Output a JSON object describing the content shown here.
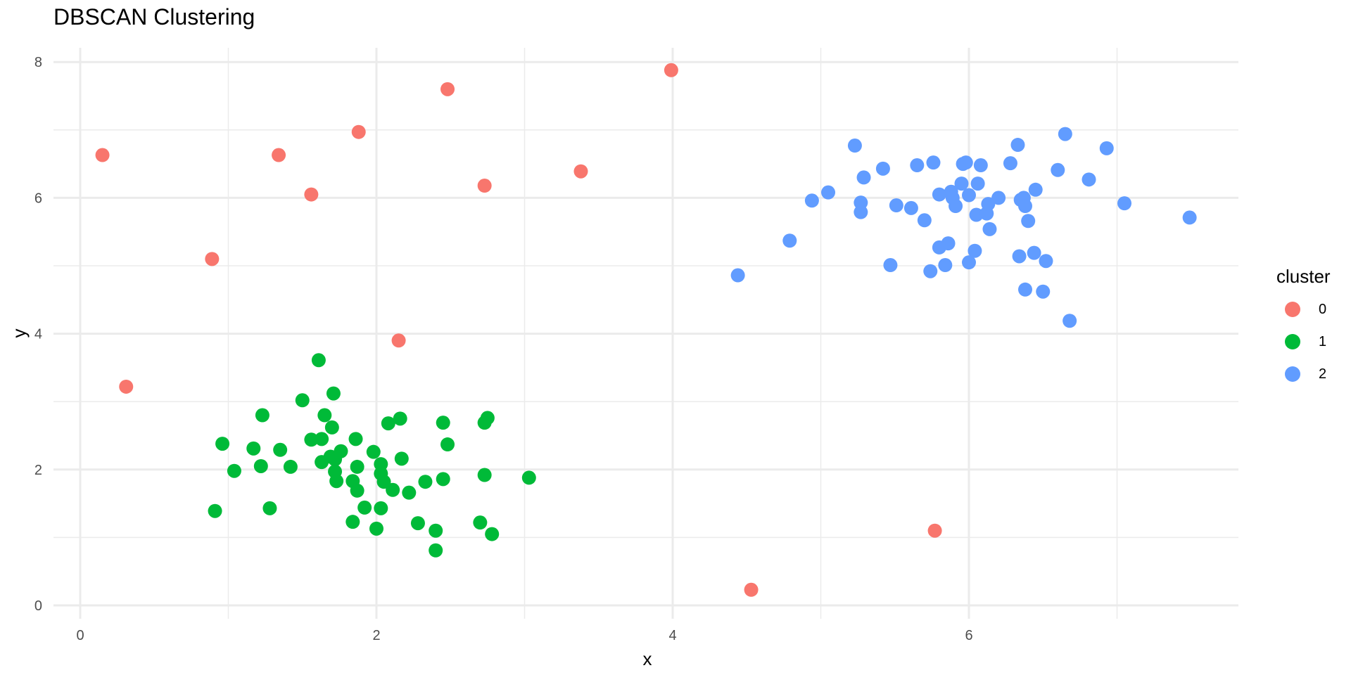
{
  "chart_data": {
    "type": "scatter",
    "title": "DBSCAN Clustering",
    "xlabel": "x",
    "ylabel": "y",
    "xlim": [
      -0.18,
      7.7
    ],
    "ylim": [
      -0.2,
      8.2
    ],
    "x_ticks": [
      0,
      2,
      4,
      6
    ],
    "y_ticks": [
      0,
      2,
      4,
      6,
      8
    ],
    "grid": true,
    "legend": {
      "title": "cluster",
      "position": "right",
      "entries": [
        "0",
        "1",
        "2"
      ]
    },
    "series": [
      {
        "name": "0",
        "color": "#F8766D",
        "points": [
          [
            0.15,
            6.63
          ],
          [
            0.31,
            3.22
          ],
          [
            0.89,
            5.1
          ],
          [
            1.34,
            6.63
          ],
          [
            1.56,
            6.05
          ],
          [
            1.88,
            6.97
          ],
          [
            2.15,
            3.9
          ],
          [
            2.48,
            7.6
          ],
          [
            2.73,
            6.18
          ],
          [
            3.38,
            6.39
          ],
          [
            3.99,
            7.88
          ],
          [
            4.53,
            0.23
          ],
          [
            5.77,
            1.1
          ]
        ]
      },
      {
        "name": "1",
        "color": "#00BA38",
        "points": [
          [
            0.91,
            1.39
          ],
          [
            0.96,
            2.38
          ],
          [
            1.04,
            1.98
          ],
          [
            1.17,
            2.31
          ],
          [
            1.22,
            2.05
          ],
          [
            1.23,
            2.8
          ],
          [
            1.28,
            1.43
          ],
          [
            1.35,
            2.29
          ],
          [
            1.42,
            2.04
          ],
          [
            1.5,
            3.02
          ],
          [
            1.56,
            2.44
          ],
          [
            1.61,
            3.61
          ],
          [
            1.63,
            2.11
          ],
          [
            1.63,
            2.45
          ],
          [
            1.65,
            2.8
          ],
          [
            1.69,
            2.19
          ],
          [
            1.7,
            2.62
          ],
          [
            1.71,
            3.12
          ],
          [
            1.72,
            2.15
          ],
          [
            1.72,
            1.97
          ],
          [
            1.73,
            1.83
          ],
          [
            1.76,
            2.27
          ],
          [
            1.84,
            1.83
          ],
          [
            1.84,
            1.23
          ],
          [
            1.86,
            2.45
          ],
          [
            1.87,
            2.04
          ],
          [
            1.87,
            1.69
          ],
          [
            1.92,
            1.44
          ],
          [
            1.98,
            2.26
          ],
          [
            2.0,
            1.13
          ],
          [
            2.03,
            2.08
          ],
          [
            2.03,
            1.94
          ],
          [
            2.03,
            1.43
          ],
          [
            2.05,
            1.82
          ],
          [
            2.08,
            2.68
          ],
          [
            2.11,
            1.7
          ],
          [
            2.16,
            2.75
          ],
          [
            2.17,
            2.16
          ],
          [
            2.22,
            1.66
          ],
          [
            2.28,
            1.21
          ],
          [
            2.33,
            1.82
          ],
          [
            2.4,
            1.1
          ],
          [
            2.4,
            0.81
          ],
          [
            2.45,
            1.86
          ],
          [
            2.45,
            2.69
          ],
          [
            2.48,
            2.37
          ],
          [
            2.7,
            1.22
          ],
          [
            2.73,
            1.92
          ],
          [
            2.73,
            2.69
          ],
          [
            2.75,
            2.76
          ],
          [
            2.78,
            1.05
          ],
          [
            3.03,
            1.88
          ]
        ]
      },
      {
        "name": "2",
        "color": "#619CFF",
        "points": [
          [
            4.44,
            4.86
          ],
          [
            4.79,
            5.37
          ],
          [
            4.94,
            5.96
          ],
          [
            5.05,
            6.08
          ],
          [
            5.23,
            6.77
          ],
          [
            5.27,
            5.93
          ],
          [
            5.27,
            5.79
          ],
          [
            5.29,
            6.3
          ],
          [
            5.42,
            6.43
          ],
          [
            5.47,
            5.01
          ],
          [
            5.51,
            5.89
          ],
          [
            5.61,
            5.85
          ],
          [
            5.65,
            6.48
          ],
          [
            5.7,
            5.67
          ],
          [
            5.74,
            4.92
          ],
          [
            5.76,
            6.52
          ],
          [
            5.8,
            6.05
          ],
          [
            5.8,
            5.27
          ],
          [
            5.84,
            5.01
          ],
          [
            5.86,
            5.33
          ],
          [
            5.88,
            6.09
          ],
          [
            5.89,
            6.0
          ],
          [
            5.91,
            5.88
          ],
          [
            5.95,
            6.21
          ],
          [
            5.96,
            6.5
          ],
          [
            5.98,
            6.52
          ],
          [
            6.0,
            6.04
          ],
          [
            6.0,
            5.05
          ],
          [
            6.04,
            5.22
          ],
          [
            6.05,
            5.75
          ],
          [
            6.06,
            6.21
          ],
          [
            6.08,
            6.48
          ],
          [
            6.12,
            5.77
          ],
          [
            6.13,
            5.91
          ],
          [
            6.14,
            5.54
          ],
          [
            6.2,
            6.0
          ],
          [
            6.28,
            6.51
          ],
          [
            6.33,
            6.78
          ],
          [
            6.34,
            5.14
          ],
          [
            6.35,
            5.97
          ],
          [
            6.37,
            6.0
          ],
          [
            6.38,
            5.88
          ],
          [
            6.38,
            4.65
          ],
          [
            6.4,
            5.66
          ],
          [
            6.44,
            5.19
          ],
          [
            6.45,
            6.12
          ],
          [
            6.5,
            4.62
          ],
          [
            6.52,
            5.07
          ],
          [
            6.6,
            6.41
          ],
          [
            6.65,
            6.94
          ],
          [
            6.68,
            4.19
          ],
          [
            6.81,
            6.27
          ],
          [
            6.93,
            6.73
          ],
          [
            7.05,
            5.92
          ],
          [
            7.49,
            5.71
          ]
        ]
      }
    ]
  }
}
